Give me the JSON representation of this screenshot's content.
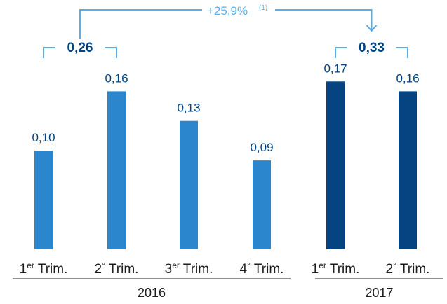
{
  "chart_data": {
    "type": "bar",
    "categories": [
      {
        "label": "1",
        "sup": "er",
        "suffix": "Trim."
      },
      {
        "label": "2",
        "sup": "o",
        "suffix": "Trim."
      },
      {
        "label": "3",
        "sup": "er",
        "suffix": "Trim."
      },
      {
        "label": "4",
        "sup": "o",
        "suffix": "Trim."
      },
      {
        "label": "1",
        "sup": "er",
        "suffix": "Trim."
      },
      {
        "label": "2",
        "sup": "o",
        "suffix": "Trim."
      }
    ],
    "values": [
      0.1,
      0.16,
      0.13,
      0.09,
      0.17,
      0.16
    ],
    "value_labels": [
      "0,10",
      "0,16",
      "0,13",
      "0,09",
      "0,17",
      "0,16"
    ],
    "groups": [
      {
        "label": "2016",
        "from": 0,
        "to": 3,
        "total_label": "0,26",
        "total_span": [
          0,
          1
        ],
        "color": "#2b86cd"
      },
      {
        "label": "2017",
        "from": 4,
        "to": 5,
        "total_label": "0,33",
        "total_span": [
          4,
          5
        ],
        "color": "#054381"
      }
    ],
    "growth_annotation": {
      "text": "+25,9%",
      "note": "(1)",
      "from_total": 0,
      "to_total": 1,
      "color": "#5aaee5"
    },
    "label_color": "#004481",
    "axis_text_color": "#1d1d1b",
    "ylim": [
      0,
      0.18
    ]
  }
}
